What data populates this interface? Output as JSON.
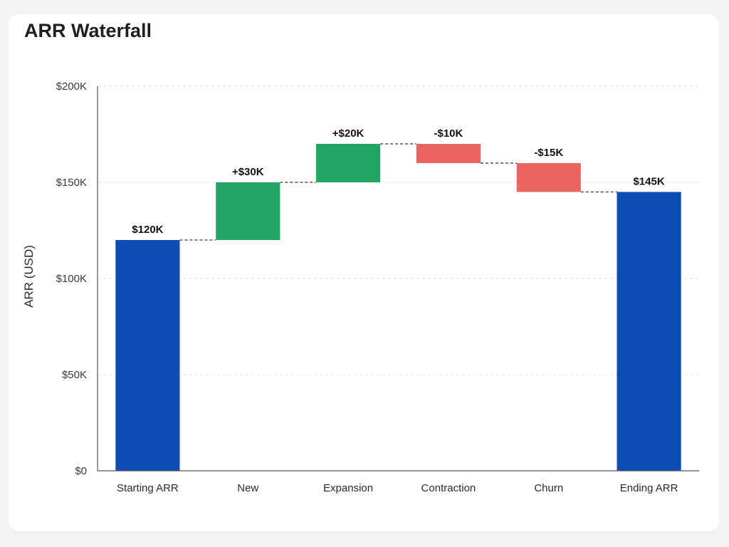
{
  "chart_data": {
    "type": "bar",
    "subtype": "waterfall",
    "title": "ARR Waterfall",
    "xlabel": "",
    "ylabel": "ARR (USD)",
    "ylim": [
      0,
      200000
    ],
    "yticks": [
      0,
      50000,
      100000,
      150000,
      200000
    ],
    "ytick_labels": [
      "$0",
      "$50K",
      "$100K",
      "$150K",
      "$200K"
    ],
    "grid": true,
    "categories": [
      "Starting ARR",
      "New",
      "Expansion",
      "Contraction",
      "Churn",
      "Ending ARR"
    ],
    "values": [
      120000,
      30000,
      20000,
      -10000,
      -15000,
      145000
    ],
    "kinds": [
      "total",
      "delta",
      "delta",
      "delta",
      "delta",
      "total"
    ],
    "data_labels": [
      "$120K",
      "+$30K",
      "+$20K",
      "-$10K",
      "-$15K",
      "$145K"
    ],
    "connectors": true,
    "colors": {
      "total": "#0b4db3",
      "increase": "#22a565",
      "decrease": "#ea6560"
    }
  }
}
